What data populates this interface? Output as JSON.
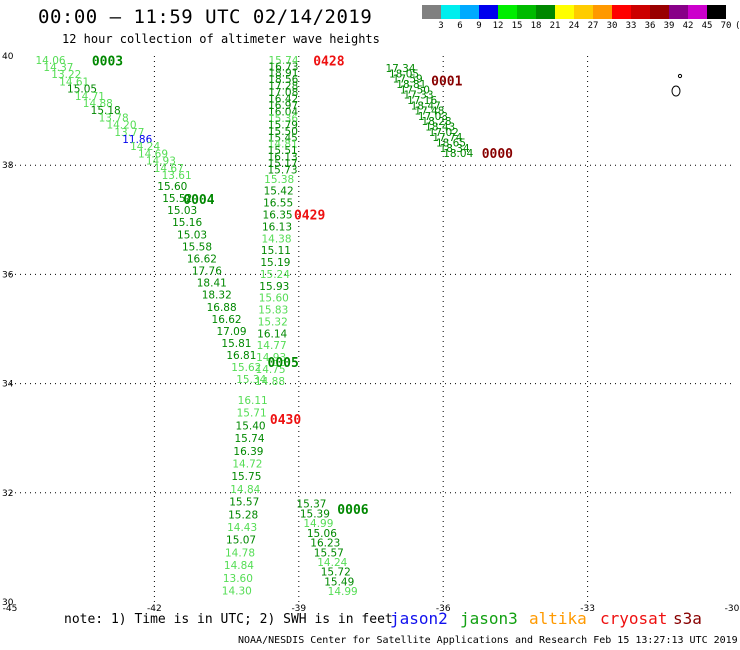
{
  "header": {
    "title": "00:00 – 11:59 UTC 02/14/2019",
    "subtitle": "12 hour collection of altimeter wave heights"
  },
  "footer": {
    "note": "note: 1) Time is in UTC; 2) SWH is in feet",
    "credit": "NOAA/NESDIS Center for Satellite Applications and Research   Feb 15 13:27:13 UTC 2019",
    "satellites": [
      {
        "name": "jason2",
        "color": "#1010ee"
      },
      {
        "name": "jason3",
        "color": "#12a012"
      },
      {
        "name": "altika",
        "color": "#ff9a00"
      },
      {
        "name": "cryosat",
        "color": "#ee1010"
      },
      {
        "name": "s3a",
        "color": "#880000"
      }
    ]
  },
  "color_scale": {
    "colors": [
      "#808080",
      "#00eeee",
      "#00aaff",
      "#0000ee",
      "#00ee00",
      "#00bb00",
      "#008800",
      "#ffff00",
      "#ffcc00",
      "#ff9900",
      "#ff0000",
      "#cc0000",
      "#990000",
      "#880088",
      "#cc00cc",
      "#000000"
    ],
    "labels": [
      "3",
      "6",
      "9",
      "12",
      "15",
      "18",
      "21",
      "24",
      "27",
      "30",
      "33",
      "36",
      "39",
      "42",
      "45",
      "70",
      "(ft)"
    ]
  },
  "chart_data": {
    "type": "scatter",
    "title": "00:00 – 11:59 UTC 02/14/2019",
    "xlim": [
      -45,
      -30
    ],
    "ylim": [
      30,
      40
    ],
    "x_ticks": [
      -45,
      -42,
      -39,
      -36,
      -33,
      -30
    ],
    "x_tick_labels": [
      "-45",
      "-42",
      "-39",
      "-36",
      "-33",
      "-30"
    ],
    "y_ticks": [
      30,
      32,
      34,
      36,
      38,
      40
    ],
    "y_tick_labels": [
      "30",
      "32",
      "34",
      "36",
      "38",
      "40"
    ],
    "grid": true,
    "units": "ft",
    "tracks": [
      {
        "start": [
          -44.47,
          39.93
        ],
        "end": [
          -41.85,
          37.82
        ],
        "values": [
          "14.06",
          "14.37",
          "13.22",
          "14.61",
          "15.05",
          "14.71",
          "14.88",
          "15.18",
          "13.78",
          "14.20",
          "13.77",
          "11.86",
          "14.24",
          "14.69",
          "14.93",
          "14.67",
          "13.61"
        ],
        "colors": [
          "#55dd55",
          "#55dd55",
          "#55dd55",
          "#55dd55",
          "#008800",
          "#55dd55",
          "#55dd55",
          "#008800",
          "#55dd55",
          "#55dd55",
          "#55dd55",
          "#0000ee",
          "#55dd55",
          "#55dd55",
          "#55dd55",
          "#55dd55",
          "#55dd55"
        ]
      },
      {
        "start": [
          -41.94,
          37.62
        ],
        "end": [
          -40.3,
          34.08
        ],
        "values": [
          "15.60",
          "15.52",
          "15.03",
          "15.16",
          "15.03",
          "15.58",
          "16.62",
          "17.76",
          "18.41",
          "18.32",
          "16.88",
          "16.62",
          "17.09",
          "15.81",
          "16.81",
          "15.62",
          "15.34"
        ],
        "colors": [
          "#008800",
          "#008800",
          "#008800",
          "#008800",
          "#008800",
          "#008800",
          "#008800",
          "#008800",
          "#008800",
          "#008800",
          "#008800",
          "#008800",
          "#008800",
          "#008800",
          "#008800",
          "#55dd55",
          "#55dd55"
        ]
      },
      {
        "start": [
          -40.27,
          33.7
        ],
        "end": [
          -40.6,
          30.21
        ],
        "values": [
          "16.11",
          "15.71",
          "15.40",
          "15.74",
          "16.39",
          "14.72",
          "15.75",
          "14.84",
          "15.57",
          "15.28",
          "14.43",
          "15.07",
          "14.78",
          "14.84",
          "13.60",
          "14.30"
        ],
        "colors": [
          "#55dd55",
          "#55dd55",
          "#008800",
          "#008800",
          "#008800",
          "#55dd55",
          "#008800",
          "#55dd55",
          "#008800",
          "#008800",
          "#55dd55",
          "#008800",
          "#55dd55",
          "#55dd55",
          "#55dd55",
          "#55dd55"
        ]
      },
      {
        "start": [
          -39.63,
          39.93
        ],
        "end": [
          -39.65,
          37.92
        ],
        "values": [
          "15.74",
          "16.73",
          "18.91",
          "18.56",
          "17.28",
          "17.08",
          "16.42",
          "16.97",
          "16.04",
          "15.36",
          "15.79",
          "15.50",
          "15.45",
          "14.81",
          "15.51",
          "16.13",
          "15.17",
          "15.73"
        ],
        "colors": [
          "#55dd55",
          "#008800",
          "#008800",
          "#008800",
          "#008800",
          "#008800",
          "#008800",
          "#008800",
          "#008800",
          "#55dd55",
          "#008800",
          "#008800",
          "#008800",
          "#55dd55",
          "#008800",
          "#008800",
          "#008800",
          "#008800"
        ]
      },
      {
        "start": [
          -39.72,
          37.75
        ],
        "end": [
          -39.91,
          34.05
        ],
        "values": [
          "15.38",
          "15.42",
          "16.55",
          "16.35",
          "16.13",
          "14.38",
          "15.11",
          "15.19",
          "15.24",
          "15.93",
          "15.60",
          "15.83",
          "15.32",
          "16.14",
          "14.77",
          "14.93",
          "14.75",
          "14.88"
        ],
        "colors": [
          "#55dd55",
          "#008800",
          "#008800",
          "#008800",
          "#008800",
          "#55dd55",
          "#008800",
          "#008800",
          "#55dd55",
          "#008800",
          "#55dd55",
          "#55dd55",
          "#55dd55",
          "#008800",
          "#55dd55",
          "#55dd55",
          "#55dd55",
          "#55dd55"
        ]
      },
      {
        "start": [
          -39.05,
          31.8
        ],
        "end": [
          -38.4,
          30.2
        ],
        "values": [
          "15.37",
          "15.39",
          "14.99",
          "15.06",
          "16.23",
          "15.57",
          "14.24",
          "15.72",
          "15.49",
          "14.99"
        ],
        "colors": [
          "#008800",
          "#008800",
          "#55dd55",
          "#008800",
          "#008800",
          "#008800",
          "#55dd55",
          "#008800",
          "#008800",
          "#55dd55"
        ]
      },
      {
        "start": [
          -37.2,
          39.78
        ],
        "end": [
          -36.0,
          38.22
        ],
        "values": [
          "17.34",
          "18.05",
          "17.59",
          "18.81",
          "17.50",
          "17.33",
          "17.16",
          "18.47",
          "17.48",
          "17.03",
          "18.28",
          "18.43",
          "17.02",
          "17.74",
          "18.65",
          "18.34",
          "18.04"
        ],
        "colors": [
          "#008800",
          "#008800",
          "#008800",
          "#008800",
          "#008800",
          "#008800",
          "#008800",
          "#008800",
          "#008800",
          "#008800",
          "#008800",
          "#008800",
          "#008800",
          "#008800",
          "#008800",
          "#008800",
          "#008800"
        ]
      }
    ],
    "annotations": [
      {
        "text": "0003",
        "x": -43.3,
        "y": 39.92,
        "color": "#008800"
      },
      {
        "text": "0004",
        "x": -41.4,
        "y": 37.38,
        "color": "#008800"
      },
      {
        "text": "0005",
        "x": -39.65,
        "y": 34.4,
        "color": "#008800"
      },
      {
        "text": "0006",
        "x": -38.2,
        "y": 31.7,
        "color": "#008800"
      },
      {
        "text": "0428",
        "x": -38.7,
        "y": 39.92,
        "color": "#ee1010"
      },
      {
        "text": "0429",
        "x": -39.1,
        "y": 37.1,
        "color": "#ee1010"
      },
      {
        "text": "0430",
        "x": -39.6,
        "y": 33.35,
        "color": "#ee1010"
      },
      {
        "text": "0001",
        "x": -36.25,
        "y": 39.55,
        "color": "#880000"
      },
      {
        "text": "0000",
        "x": -35.2,
        "y": 38.22,
        "color": "#880000"
      }
    ]
  }
}
